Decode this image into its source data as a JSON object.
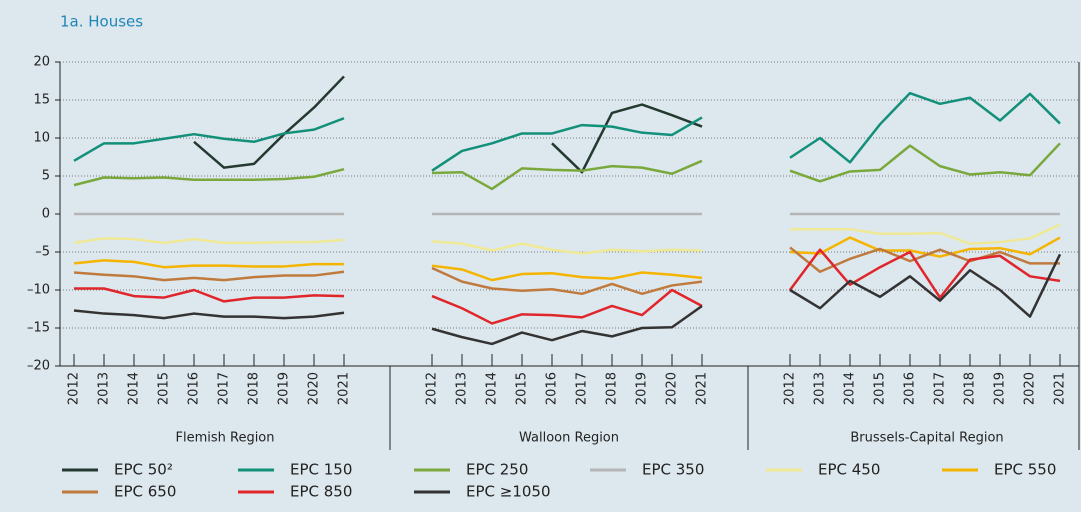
{
  "chart_data": {
    "type": "line",
    "title": "1a.  Houses",
    "categories": [
      "2012",
      "2013",
      "2014",
      "2015",
      "2016",
      "2017",
      "2018",
      "2019",
      "2020",
      "2021"
    ],
    "panels": [
      "Flemish Region",
      "Walloon Region",
      "Brussels-Capital Region"
    ],
    "ylim": [
      -20,
      20
    ],
    "yticks": [
      {
        "value": -20,
        "label": "–20"
      },
      {
        "value": -15,
        "label": "–15"
      },
      {
        "value": -10,
        "label": "–10"
      },
      {
        "value": -5,
        "label": "–5"
      },
      0,
      5,
      10,
      15,
      20
    ],
    "grid": true,
    "series": [
      {
        "name": "EPC 50²",
        "color": "#243a31",
        "values": [
          [
            null,
            null,
            null,
            null,
            9.5,
            6.1,
            6.6,
            10.5,
            14,
            18.1
          ],
          [
            null,
            null,
            null,
            null,
            9.3,
            5.5,
            13.3,
            14.4,
            13,
            11.5
          ],
          [
            null,
            null,
            null,
            null,
            null,
            null,
            null,
            null,
            null,
            null
          ]
        ]
      },
      {
        "name": "EPC 150",
        "color": "#13907a",
        "values": [
          [
            7,
            9.3,
            9.3,
            9.9,
            10.5,
            9.9,
            9.5,
            10.6,
            11.1,
            12.6
          ],
          [
            5.7,
            8.3,
            9.3,
            10.6,
            10.6,
            11.7,
            11.5,
            10.7,
            10.4,
            12.7
          ],
          [
            7.4,
            10,
            6.8,
            11.8,
            15.9,
            14.5,
            15.3,
            12.3,
            15.8,
            11.9
          ]
        ]
      },
      {
        "name": "EPC 250",
        "color": "#7aa83c",
        "values": [
          [
            3.8,
            4.8,
            4.7,
            4.8,
            4.5,
            4.5,
            4.5,
            4.6,
            4.9,
            5.9
          ],
          [
            5.4,
            5.5,
            3.3,
            6,
            5.8,
            5.7,
            6.3,
            6.1,
            5.3,
            7
          ],
          [
            5.7,
            4.3,
            5.6,
            5.8,
            9,
            6.3,
            5.2,
            5.5,
            5.1,
            9.3
          ]
        ]
      },
      {
        "name": "EPC 350",
        "color": "#b5b5b5",
        "values": [
          [
            0,
            0,
            0,
            0,
            0,
            0,
            0,
            0,
            0,
            0
          ],
          [
            0,
            0,
            0,
            0,
            0,
            0,
            0,
            0,
            0,
            0
          ],
          [
            0,
            0,
            0,
            0,
            0,
            0,
            0,
            0,
            0,
            0
          ]
        ]
      },
      {
        "name": "EPC 450",
        "color": "#efe996",
        "values": [
          [
            -3.8,
            -3.2,
            -3.3,
            -3.8,
            -3.3,
            -3.8,
            -3.8,
            -3.7,
            -3.7,
            -3.4
          ],
          [
            -3.6,
            -3.9,
            -4.8,
            -3.9,
            -4.7,
            -5.2,
            -4.7,
            -4.9,
            -4.7,
            -4.8
          ],
          [
            -2,
            -2,
            -2,
            -2.6,
            -2.6,
            -2.5,
            -3.9,
            -3.7,
            -3.2,
            -1.4
          ]
        ]
      },
      {
        "name": "EPC 550",
        "color": "#f4b400",
        "values": [
          [
            -6.5,
            -6.1,
            -6.3,
            -7,
            -6.8,
            -6.8,
            -6.9,
            -6.9,
            -6.6,
            -6.6
          ],
          [
            -6.8,
            -7.3,
            -8.7,
            -7.9,
            -7.8,
            -8.3,
            -8.5,
            -7.7,
            -8,
            -8.4
          ],
          [
            -5,
            -5.2,
            -3.1,
            -4.8,
            -4.8,
            -5.6,
            -4.6,
            -4.5,
            -5.3,
            -3.1
          ]
        ]
      },
      {
        "name": "EPC 650",
        "color": "#c07a3e",
        "values": [
          [
            -7.7,
            -8,
            -8.2,
            -8.7,
            -8.4,
            -8.7,
            -8.3,
            -8.1,
            -8.1,
            -7.6
          ],
          [
            -7.1,
            -8.9,
            -9.8,
            -10.1,
            -9.9,
            -10.5,
            -9.2,
            -10.5,
            -9.4,
            -8.9
          ],
          [
            -4.4,
            -7.6,
            -5.9,
            -4.6,
            -6.2,
            -4.7,
            -6.2,
            -5,
            -6.5,
            -6.5
          ]
        ]
      },
      {
        "name": "EPC 850",
        "color": "#e0262b",
        "values": [
          [
            -9.8,
            -9.8,
            -10.8,
            -11,
            -10,
            -11.5,
            -11,
            -11,
            -10.7,
            -10.8
          ],
          [
            -10.8,
            -12.4,
            -14.4,
            -13.2,
            -13.3,
            -13.6,
            -12.1,
            -13.3,
            -10,
            -12.1
          ],
          [
            -10,
            -4.7,
            -9.3,
            -7,
            -5,
            -11,
            -6,
            -5.5,
            -8.2,
            -8.8
          ]
        ]
      },
      {
        "name": "EPC ≥1050",
        "color": "#333333",
        "values": [
          [
            -12.7,
            -13.1,
            -13.3,
            -13.7,
            -13.1,
            -13.5,
            -13.5,
            -13.7,
            -13.5,
            -13
          ],
          [
            -15.1,
            -16.2,
            -17.1,
            -15.6,
            -16.6,
            -15.4,
            -16.1,
            -15,
            -14.9,
            -12.1
          ],
          [
            -10,
            -12.4,
            -8.8,
            -10.9,
            -8.2,
            -11.4,
            -7.4,
            -10,
            -13.5,
            -5.3
          ]
        ]
      }
    ]
  }
}
